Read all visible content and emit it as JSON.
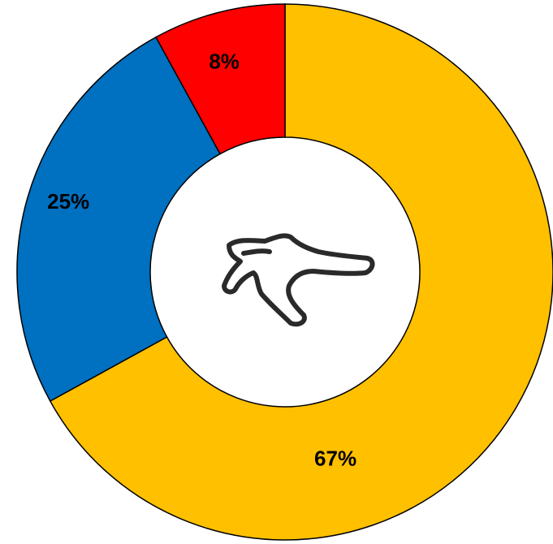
{
  "chart_data": {
    "type": "donut",
    "values": [
      67,
      25,
      8
    ],
    "value_labels": [
      "67%",
      "25%",
      "8%"
    ],
    "colors": [
      "#FFC000",
      "#0070C0",
      "#FF0000"
    ]
  }
}
